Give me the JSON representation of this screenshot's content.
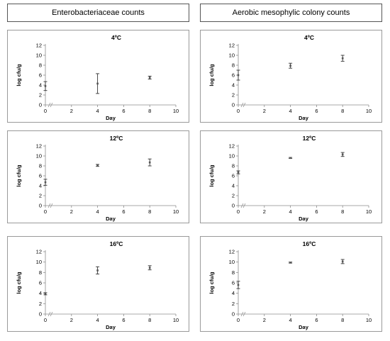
{
  "headers": [
    "Enterobacteriaceae counts",
    "Aerobic mesophylic colony counts"
  ],
  "chart_data": [
    {
      "type": "scatter",
      "title": "4ºC",
      "xlabel": "Day",
      "ylabel": "log cfu/g",
      "xlim": [
        0,
        10
      ],
      "ylim": [
        0,
        12
      ],
      "xticks": [
        "0",
        "2",
        "4",
        "6",
        "8",
        "10"
      ],
      "yticks": [
        "0",
        "2",
        "4",
        "6",
        "8",
        "10",
        "12"
      ],
      "x": [
        0,
        4,
        8
      ],
      "y": [
        3.8,
        4.3,
        5.5
      ],
      "err": [
        0.9,
        2.0,
        0.3
      ]
    },
    {
      "type": "scatter",
      "title": "4ºC",
      "xlabel": "Day",
      "ylabel": "log cfu/g",
      "xlim": [
        0,
        10
      ],
      "ylim": [
        0,
        12
      ],
      "xticks": [
        "0",
        "2",
        "4",
        "6",
        "8",
        "10"
      ],
      "yticks": [
        "0",
        "2",
        "4",
        "6",
        "8",
        "10",
        "12"
      ],
      "x": [
        0,
        4,
        8
      ],
      "y": [
        6.0,
        7.9,
        9.4
      ],
      "err": [
        1.0,
        0.5,
        0.6
      ]
    },
    {
      "type": "scatter",
      "title": "12ºC",
      "xlabel": "Day",
      "ylabel": "log cfu/g",
      "xlim": [
        0,
        10
      ],
      "ylim": [
        0,
        12
      ],
      "xticks": [
        "0",
        "2",
        "4",
        "6",
        "8",
        "10"
      ],
      "yticks": [
        "0",
        "2",
        "4",
        "6",
        "8",
        "10",
        "12"
      ],
      "x": [
        0,
        4,
        8
      ],
      "y": [
        4.7,
        8.1,
        8.7
      ],
      "err": [
        0.6,
        0.2,
        0.7
      ]
    },
    {
      "type": "scatter",
      "title": "12ºC",
      "xlabel": "Day",
      "ylabel": "log cfu/g",
      "xlim": [
        0,
        10
      ],
      "ylim": [
        0,
        12
      ],
      "xticks": [
        "0",
        "2",
        "4",
        "6",
        "8",
        "10"
      ],
      "yticks": [
        "0",
        "2",
        "4",
        "6",
        "8",
        "10",
        "12"
      ],
      "x": [
        0,
        4,
        8
      ],
      "y": [
        6.7,
        9.6,
        10.3
      ],
      "err": [
        0.3,
        0.1,
        0.4
      ]
    },
    {
      "type": "scatter",
      "title": "16ºC",
      "xlabel": "Day",
      "ylabel": "log cfu/g",
      "xlim": [
        0,
        10
      ],
      "ylim": [
        0,
        12
      ],
      "xticks": [
        "0",
        "2",
        "4",
        "6",
        "8",
        "10"
      ],
      "yticks": [
        "0",
        "2",
        "4",
        "6",
        "8",
        "10",
        "12"
      ],
      "x": [
        0,
        4,
        8
      ],
      "y": [
        3.9,
        8.4,
        8.9
      ],
      "err": [
        0.2,
        0.7,
        0.4
      ]
    },
    {
      "type": "scatter",
      "title": "16ºC",
      "xlabel": "Day",
      "ylabel": "log cfu/g",
      "xlim": [
        0,
        10
      ],
      "ylim": [
        0,
        12
      ],
      "xticks": [
        "0",
        "2",
        "4",
        "6",
        "8",
        "10"
      ],
      "yticks": [
        "0",
        "2",
        "4",
        "6",
        "8",
        "10",
        "12"
      ],
      "x": [
        0,
        4,
        8
      ],
      "y": [
        5.6,
        9.9,
        10.1
      ],
      "err": [
        0.7,
        0.1,
        0.4
      ]
    }
  ]
}
